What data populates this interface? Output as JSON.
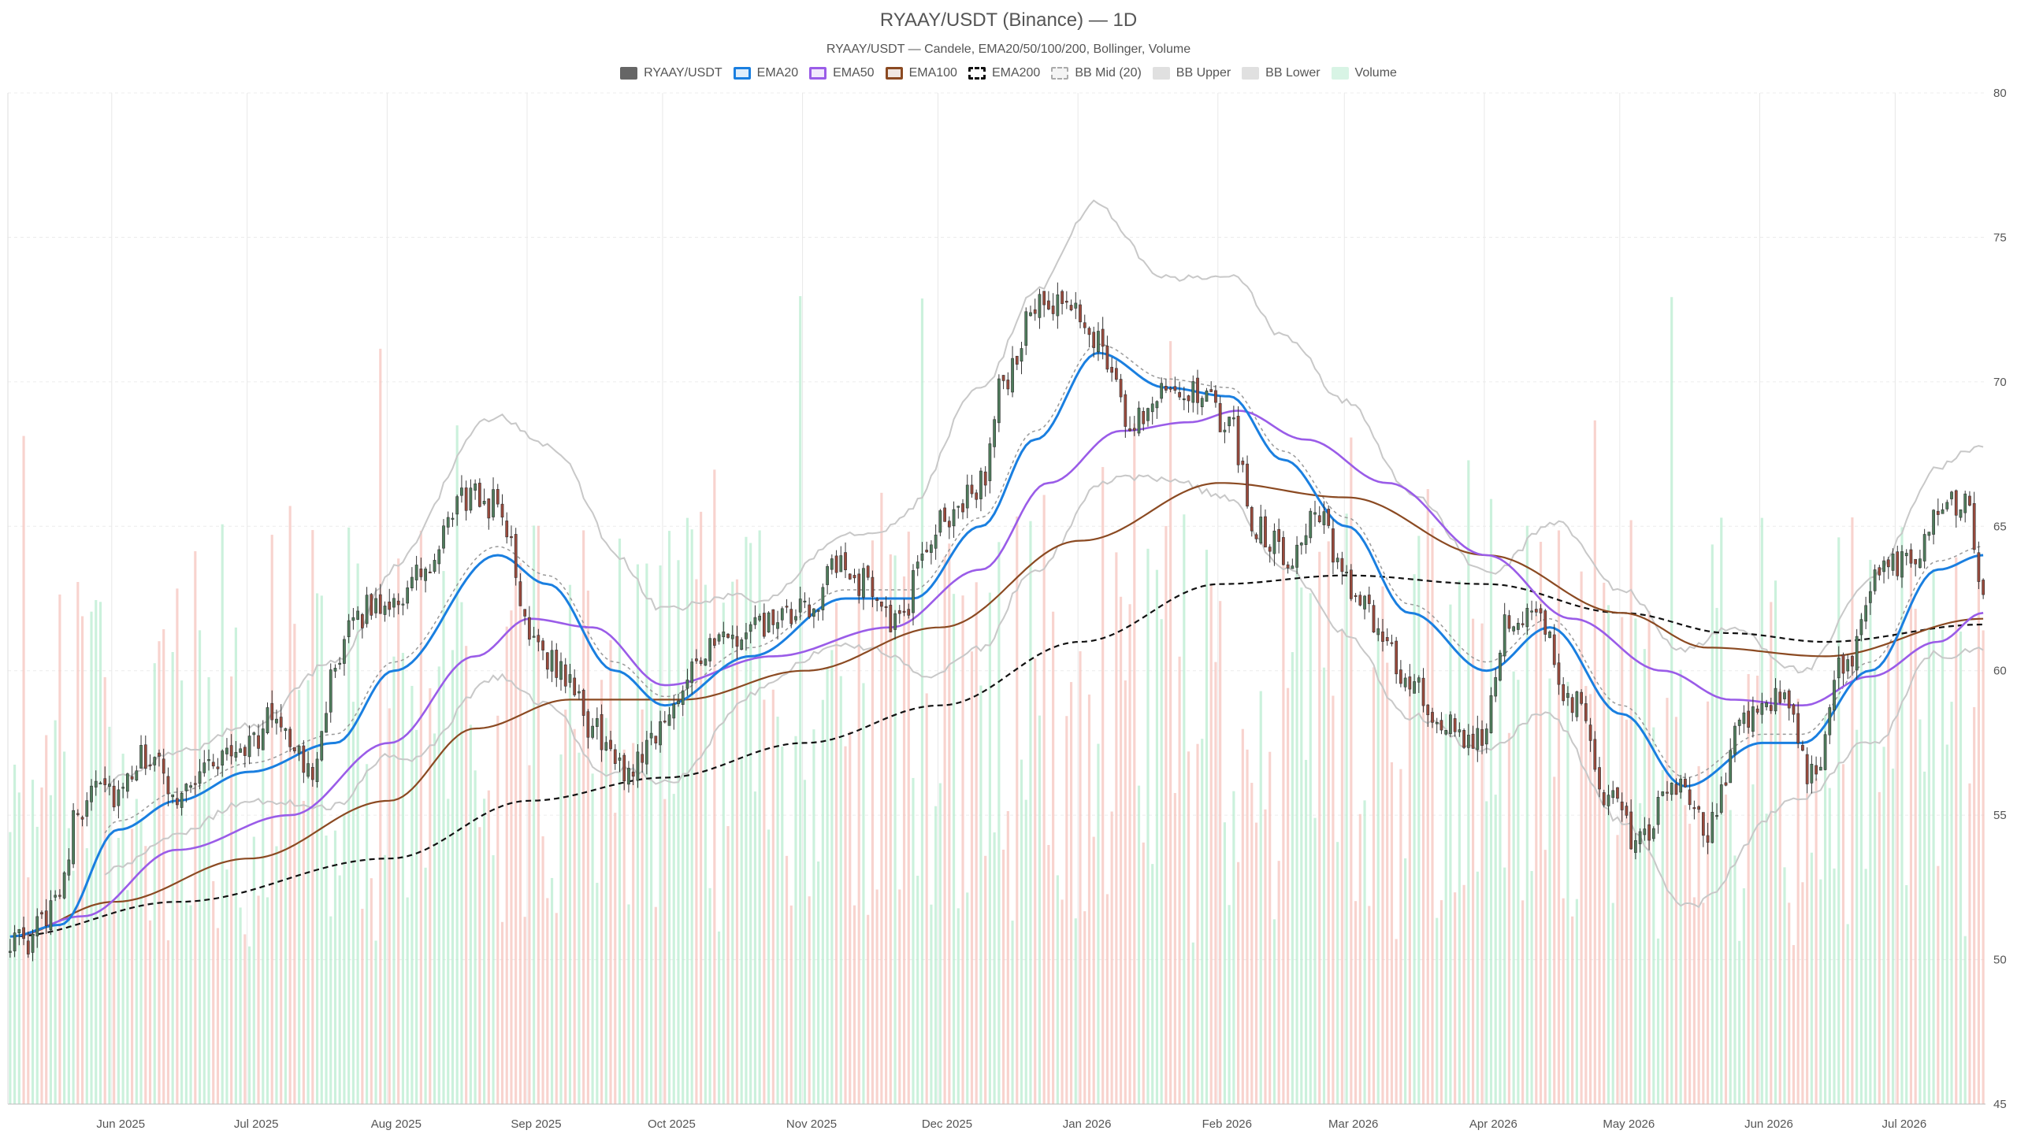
{
  "header": {
    "title": "RYAAY/USDT (Binance) — 1D",
    "subtitle": "RYAAY/USDT — Candele, EMA20/50/100/200, Bollinger, Volume"
  },
  "legend": [
    {
      "label": "RYAAY/USDT",
      "color": "#666666",
      "style": "solid"
    },
    {
      "label": "EMA20",
      "color": "#1a7fe0",
      "style": "line"
    },
    {
      "label": "EMA50",
      "color": "#9a5ce8",
      "style": "line"
    },
    {
      "label": "EMA100",
      "color": "#8b4a22",
      "style": "line"
    },
    {
      "label": "EMA200",
      "color": "#111111",
      "style": "dashed"
    },
    {
      "label": "BB Mid (20)",
      "color": "#aaaaaa",
      "style": "dotted"
    },
    {
      "label": "BB Upper",
      "color": "#c8c8c8",
      "style": "band"
    },
    {
      "label": "BB Lower",
      "color": "#c8c8c8",
      "style": "band"
    },
    {
      "label": "Volume",
      "color": "#b9ecd0",
      "style": "band"
    }
  ],
  "chart_data": {
    "type": "candlestick",
    "title": "RYAAY/USDT (Binance) — 1D",
    "y_axis": {
      "position": "right",
      "min": 45,
      "max": 80,
      "ticks": [
        45,
        50,
        55,
        60,
        65,
        70,
        75,
        80
      ]
    },
    "x_axis": {
      "start": "2025-05-09",
      "end": "2026-07-20",
      "ticks": [
        {
          "date": "2025-06-01",
          "label": "Jun 2025"
        },
        {
          "date": "2025-07-01",
          "label": "Jul 2025"
        },
        {
          "date": "2025-08-01",
          "label": "Aug 2025"
        },
        {
          "date": "2025-09-01",
          "label": "Sep 2025"
        },
        {
          "date": "2025-10-01",
          "label": "Oct 2025"
        },
        {
          "date": "2025-11-01",
          "label": "Nov 2025"
        },
        {
          "date": "2025-12-01",
          "label": "Dec 2025"
        },
        {
          "date": "2026-01-01",
          "label": "Jan 2026"
        },
        {
          "date": "2026-02-01",
          "label": "Feb 2026"
        },
        {
          "date": "2026-03-01",
          "label": "Mar 2026"
        },
        {
          "date": "2026-04-01",
          "label": "Apr 2026"
        },
        {
          "date": "2026-05-01",
          "label": "May 2026"
        },
        {
          "date": "2026-06-01",
          "label": "Jun 2026"
        },
        {
          "date": "2026-07-01",
          "label": "Jul 2026"
        }
      ]
    },
    "grid": true,
    "colors": {
      "up": "#4f7d5c",
      "down": "#9a4a3c",
      "volume_up": "#b9ecd0",
      "volume_down": "#f6c4bd",
      "ema20": "#1a7fe0",
      "ema50": "#9a5ce8",
      "ema100": "#8b4a22",
      "ema200": "#111111",
      "bb": "#c8c8c8",
      "bb_mid": "#999999"
    },
    "close_anchors": [
      [
        "2025-05-09",
        50.8
      ],
      [
        "2025-05-13",
        50.3
      ],
      [
        "2025-05-16",
        51.4
      ],
      [
        "2025-05-20",
        52.7
      ],
      [
        "2025-05-24",
        55.0
      ],
      [
        "2025-05-28",
        56.5
      ],
      [
        "2025-06-02",
        55.6
      ],
      [
        "2025-06-08",
        57.0
      ],
      [
        "2025-06-15",
        55.8
      ],
      [
        "2025-06-22",
        56.8
      ],
      [
        "2025-07-01",
        57.5
      ],
      [
        "2025-07-07",
        58.5
      ],
      [
        "2025-07-14",
        56.5
      ],
      [
        "2025-07-20",
        59.8
      ],
      [
        "2025-07-25",
        62.0
      ],
      [
        "2025-08-02",
        62.5
      ],
      [
        "2025-08-10",
        63.5
      ],
      [
        "2025-08-17",
        66.0
      ],
      [
        "2025-08-25",
        65.8
      ],
      [
        "2025-09-01",
        61.5
      ],
      [
        "2025-09-08",
        60.0
      ],
      [
        "2025-09-15",
        58.0
      ],
      [
        "2025-09-22",
        56.5
      ],
      [
        "2025-09-30",
        58.0
      ],
      [
        "2025-10-08",
        60.5
      ],
      [
        "2025-10-15",
        61.0
      ],
      [
        "2025-10-25",
        61.6
      ],
      [
        "2025-11-01",
        62.0
      ],
      [
        "2025-11-08",
        63.5
      ],
      [
        "2025-11-15",
        63.0
      ],
      [
        "2025-11-22",
        61.5
      ],
      [
        "2025-11-28",
        64.5
      ],
      [
        "2025-12-04",
        65.5
      ],
      [
        "2025-12-10",
        66.5
      ],
      [
        "2025-12-15",
        70.0
      ],
      [
        "2025-12-22",
        72.5
      ],
      [
        "2025-12-30",
        72.5
      ],
      [
        "2026-01-05",
        71.5
      ],
      [
        "2026-01-12",
        68.5
      ],
      [
        "2026-01-20",
        70.0
      ],
      [
        "2026-01-27",
        69.5
      ],
      [
        "2026-02-03",
        68.5
      ],
      [
        "2026-02-09",
        65.0
      ],
      [
        "2026-02-16",
        64.0
      ],
      [
        "2026-02-22",
        65.5
      ],
      [
        "2026-03-01",
        63.0
      ],
      [
        "2026-03-08",
        61.5
      ],
      [
        "2026-03-15",
        59.5
      ],
      [
        "2026-03-22",
        58.0
      ],
      [
        "2026-03-30",
        57.5
      ],
      [
        "2026-04-06",
        62.0
      ],
      [
        "2026-04-13",
        61.5
      ],
      [
        "2026-04-20",
        59.0
      ],
      [
        "2026-04-28",
        55.5
      ],
      [
        "2026-05-05",
        54.0
      ],
      [
        "2026-05-12",
        56.0
      ],
      [
        "2026-05-20",
        54.5
      ],
      [
        "2026-05-28",
        58.5
      ],
      [
        "2026-06-05",
        59.0
      ],
      [
        "2026-06-12",
        56.5
      ],
      [
        "2026-06-20",
        60.5
      ],
      [
        "2026-06-27",
        63.5
      ],
      [
        "2026-07-04",
        64.0
      ],
      [
        "2026-07-10",
        65.5
      ],
      [
        "2026-07-16",
        66.0
      ],
      [
        "2026-07-20",
        63.0
      ]
    ],
    "indicators": {
      "ema20": [
        [
          "2025-05-09",
          50.8
        ],
        [
          "2025-05-20",
          51.2
        ],
        [
          "2025-06-02",
          54.5
        ],
        [
          "2025-06-15",
          55.5
        ],
        [
          "2025-07-01",
          56.5
        ],
        [
          "2025-07-20",
          57.5
        ],
        [
          "2025-08-02",
          60.0
        ],
        [
          "2025-08-25",
          64.0
        ],
        [
          "2025-09-05",
          63.0
        ],
        [
          "2025-09-20",
          60.0
        ],
        [
          "2025-10-01",
          58.8
        ],
        [
          "2025-10-20",
          60.5
        ],
        [
          "2025-11-10",
          62.5
        ],
        [
          "2025-11-25",
          62.5
        ],
        [
          "2025-12-10",
          65.0
        ],
        [
          "2025-12-22",
          68.0
        ],
        [
          "2026-01-05",
          71.0
        ],
        [
          "2026-01-20",
          69.8
        ],
        [
          "2026-02-03",
          69.5
        ],
        [
          "2026-02-15",
          67.3
        ],
        [
          "2026-03-01",
          65.0
        ],
        [
          "2026-03-15",
          62.0
        ],
        [
          "2026-04-01",
          60.0
        ],
        [
          "2026-04-15",
          61.5
        ],
        [
          "2026-05-01",
          58.5
        ],
        [
          "2026-05-15",
          56.0
        ],
        [
          "2026-06-01",
          57.5
        ],
        [
          "2026-06-10",
          57.5
        ],
        [
          "2026-06-25",
          60.0
        ],
        [
          "2026-07-10",
          63.5
        ],
        [
          "2026-07-20",
          64.0
        ]
      ],
      "ema50": [
        [
          "2025-05-09",
          50.8
        ],
        [
          "2025-05-25",
          51.5
        ],
        [
          "2025-06-15",
          53.8
        ],
        [
          "2025-07-10",
          55.0
        ],
        [
          "2025-08-01",
          57.5
        ],
        [
          "2025-08-20",
          60.5
        ],
        [
          "2025-09-01",
          61.8
        ],
        [
          "2025-09-15",
          61.5
        ],
        [
          "2025-10-01",
          59.5
        ],
        [
          "2025-10-25",
          60.5
        ],
        [
          "2025-11-20",
          61.5
        ],
        [
          "2025-12-10",
          63.5
        ],
        [
          "2025-12-25",
          66.5
        ],
        [
          "2026-01-10",
          68.3
        ],
        [
          "2026-01-25",
          68.6
        ],
        [
          "2026-02-05",
          69.0
        ],
        [
          "2026-02-20",
          68.0
        ],
        [
          "2026-03-10",
          66.5
        ],
        [
          "2026-04-01",
          64.0
        ],
        [
          "2026-04-20",
          61.8
        ],
        [
          "2026-05-10",
          60.0
        ],
        [
          "2026-05-25",
          59.0
        ],
        [
          "2026-06-10",
          58.8
        ],
        [
          "2026-06-25",
          59.8
        ],
        [
          "2026-07-10",
          61.0
        ],
        [
          "2026-07-20",
          62.0
        ]
      ],
      "ema100": [
        [
          "2025-05-09",
          50.8
        ],
        [
          "2025-06-01",
          52.0
        ],
        [
          "2025-07-01",
          53.5
        ],
        [
          "2025-08-01",
          55.5
        ],
        [
          "2025-08-20",
          58.0
        ],
        [
          "2025-09-10",
          59.0
        ],
        [
          "2025-10-05",
          59.0
        ],
        [
          "2025-11-01",
          60.0
        ],
        [
          "2025-12-01",
          61.5
        ],
        [
          "2026-01-01",
          64.5
        ],
        [
          "2026-02-01",
          66.5
        ],
        [
          "2026-03-01",
          66.0
        ],
        [
          "2026-04-01",
          64.0
        ],
        [
          "2026-05-01",
          62.0
        ],
        [
          "2026-05-20",
          60.8
        ],
        [
          "2026-06-15",
          60.5
        ],
        [
          "2026-07-20",
          61.8
        ]
      ],
      "ema200": [
        [
          "2025-05-09",
          50.8
        ],
        [
          "2025-06-15",
          52.0
        ],
        [
          "2025-08-01",
          53.5
        ],
        [
          "2025-09-01",
          55.5
        ],
        [
          "2025-10-01",
          56.3
        ],
        [
          "2025-11-01",
          57.5
        ],
        [
          "2025-12-01",
          58.8
        ],
        [
          "2026-01-01",
          61.0
        ],
        [
          "2026-02-01",
          63.0
        ],
        [
          "2026-03-01",
          63.3
        ],
        [
          "2026-04-01",
          63.0
        ],
        [
          "2026-05-01",
          62.0
        ],
        [
          "2026-05-25",
          61.3
        ],
        [
          "2026-06-15",
          61.0
        ],
        [
          "2026-07-20",
          61.6
        ]
      ],
      "bb_offset": 0.3,
      "bb_width": [
        [
          "2025-05-30",
          1.5
        ],
        [
          "2025-07-01",
          1.3
        ],
        [
          "2025-07-20",
          2.5
        ],
        [
          "2025-08-20",
          4.5
        ],
        [
          "2025-09-10",
          4.5
        ],
        [
          "2025-10-01",
          3.0
        ],
        [
          "2025-10-25",
          1.5
        ],
        [
          "2025-11-15",
          2.0
        ],
        [
          "2025-12-10",
          4.5
        ],
        [
          "2026-01-01",
          5.0
        ],
        [
          "2026-01-20",
          3.5
        ],
        [
          "2026-02-10",
          4.0
        ],
        [
          "2026-03-10",
          4.0
        ],
        [
          "2026-04-05",
          3.0
        ],
        [
          "2026-05-01",
          4.0
        ],
        [
          "2026-05-20",
          4.5
        ],
        [
          "2026-06-10",
          2.2
        ],
        [
          "2026-07-01",
          3.0
        ],
        [
          "2026-07-20",
          3.5
        ]
      ]
    },
    "volume_scale_note": "Volume bars overlaid behind price, relative heights"
  }
}
